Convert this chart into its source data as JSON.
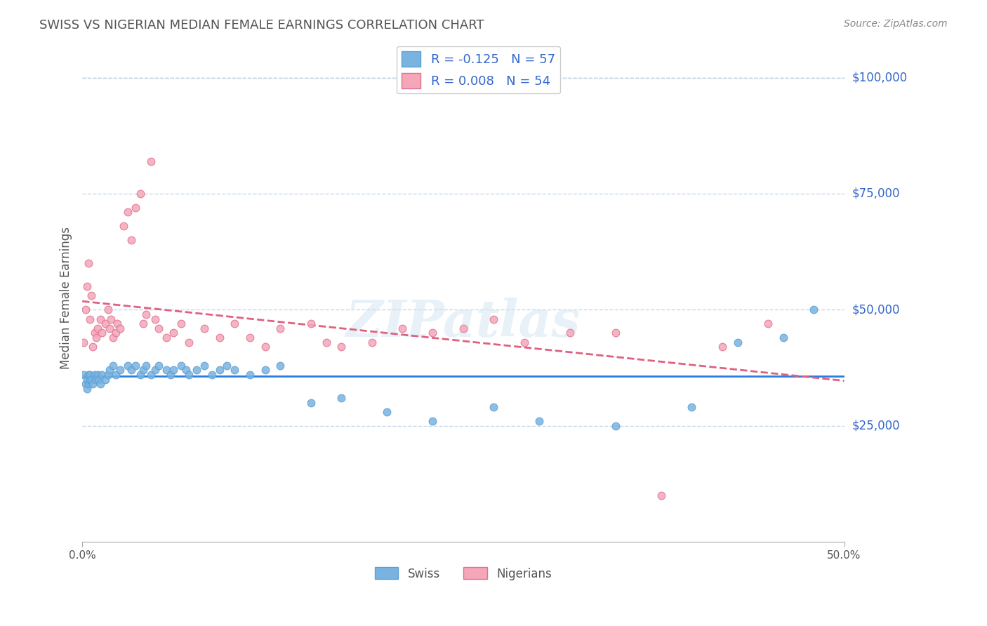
{
  "title": "SWISS VS NIGERIAN MEDIAN FEMALE EARNINGS CORRELATION CHART",
  "source": "Source: ZipAtlas.com",
  "xlabel_bottom_left": "0.0%",
  "xlabel_bottom_right": "50.0%",
  "ylabel": "Median Female Earnings",
  "ytick_labels": [
    "$25,000",
    "$50,000",
    "$75,000",
    "$100,000"
  ],
  "ytick_values": [
    25000,
    50000,
    75000,
    100000
  ],
  "xmin": 0.0,
  "xmax": 0.5,
  "ymin": 0,
  "ymax": 105000,
  "swiss_color": "#7ab3e0",
  "swiss_edge_color": "#5a9fd4",
  "nigerian_color": "#f4a7b9",
  "nigerian_edge_color": "#e07090",
  "swiss_line_color": "#2a7de1",
  "nigerian_line_color": "#e06080",
  "swiss_R": -0.125,
  "swiss_N": 57,
  "nigerian_R": 0.008,
  "nigerian_N": 54,
  "legend_swiss_label": "R = -0.125   N = 57",
  "legend_nigerian_label": "R = 0.008   N = 54",
  "legend_bottom_swiss": "Swiss",
  "legend_bottom_nigerian": "Nigerians",
  "watermark": "ZIPatlas",
  "background_color": "#ffffff",
  "grid_color": "#c8d8e8",
  "title_color": "#555555",
  "axis_label_color": "#3366cc",
  "swiss_x": [
    0.001,
    0.002,
    0.003,
    0.003,
    0.004,
    0.004,
    0.005,
    0.005,
    0.006,
    0.007,
    0.008,
    0.009,
    0.01,
    0.011,
    0.012,
    0.013,
    0.015,
    0.017,
    0.018,
    0.02,
    0.022,
    0.025,
    0.03,
    0.032,
    0.035,
    0.038,
    0.04,
    0.042,
    0.045,
    0.048,
    0.05,
    0.055,
    0.058,
    0.06,
    0.065,
    0.068,
    0.07,
    0.075,
    0.08,
    0.085,
    0.09,
    0.095,
    0.1,
    0.11,
    0.12,
    0.13,
    0.15,
    0.17,
    0.2,
    0.23,
    0.27,
    0.3,
    0.35,
    0.4,
    0.43,
    0.46,
    0.48
  ],
  "swiss_y": [
    36000,
    34000,
    35000,
    33000,
    36000,
    34000,
    35000,
    36000,
    35000,
    34000,
    36000,
    35000,
    36000,
    35000,
    34000,
    36000,
    35000,
    36000,
    37000,
    38000,
    36000,
    37000,
    38000,
    37000,
    38000,
    36000,
    37000,
    38000,
    36000,
    37000,
    38000,
    37000,
    36000,
    37000,
    38000,
    37000,
    36000,
    37000,
    38000,
    36000,
    37000,
    38000,
    37000,
    36000,
    37000,
    38000,
    30000,
    31000,
    28000,
    26000,
    29000,
    26000,
    25000,
    29000,
    43000,
    44000,
    50000
  ],
  "nigerian_x": [
    0.001,
    0.002,
    0.003,
    0.004,
    0.005,
    0.006,
    0.007,
    0.008,
    0.009,
    0.01,
    0.012,
    0.013,
    0.015,
    0.017,
    0.018,
    0.019,
    0.02,
    0.022,
    0.023,
    0.025,
    0.027,
    0.03,
    0.032,
    0.035,
    0.038,
    0.04,
    0.042,
    0.045,
    0.048,
    0.05,
    0.055,
    0.06,
    0.065,
    0.07,
    0.08,
    0.09,
    0.1,
    0.11,
    0.12,
    0.13,
    0.15,
    0.16,
    0.17,
    0.19,
    0.21,
    0.23,
    0.25,
    0.27,
    0.29,
    0.32,
    0.35,
    0.38,
    0.42,
    0.45
  ],
  "nigerian_y": [
    43000,
    50000,
    55000,
    60000,
    48000,
    53000,
    42000,
    45000,
    44000,
    46000,
    48000,
    45000,
    47000,
    50000,
    46000,
    48000,
    44000,
    45000,
    47000,
    46000,
    68000,
    71000,
    65000,
    72000,
    75000,
    47000,
    49000,
    82000,
    48000,
    46000,
    44000,
    45000,
    47000,
    43000,
    46000,
    44000,
    47000,
    44000,
    42000,
    46000,
    47000,
    43000,
    42000,
    43000,
    46000,
    45000,
    46000,
    48000,
    43000,
    45000,
    45000,
    10000,
    42000,
    47000
  ]
}
